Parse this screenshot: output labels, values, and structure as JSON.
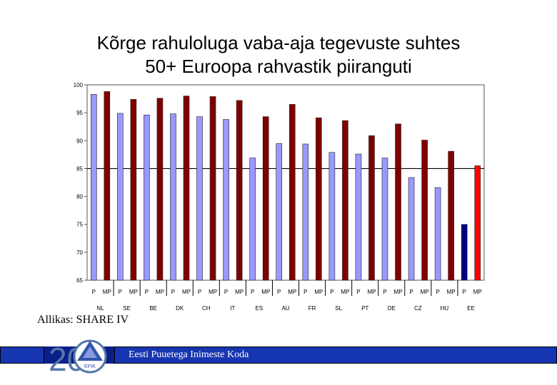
{
  "title": {
    "line1": "Kõrge rahuloluga vaba-aja tegevuste suhtes",
    "line2": "50+ Euroopa rahvastik piiranguti"
  },
  "source": "Allikas: SHARE IV",
  "footer": {
    "org": "Eesti Puuetega Inimeste Koda"
  },
  "logo": {
    "number": "20",
    "badge": "EPIK",
    "icon": "epik-logo-icon"
  },
  "colors": {
    "p": "#9999ff",
    "mp": "#800000",
    "ee_p": "#000080",
    "ee_mp": "#ff0000",
    "bar_outline": "#222222",
    "plot_bg": "#ffffff",
    "footer_bg": "#0b1f8a"
  },
  "chart_data": {
    "type": "bar",
    "title": "",
    "xlabel": "",
    "ylabel": "",
    "ylim": [
      65,
      100
    ],
    "yticks": [
      65,
      70,
      75,
      80,
      85,
      90,
      95,
      100
    ],
    "reference_line": 85,
    "grid": false,
    "categories": [
      "NL",
      "SE",
      "BE",
      "DK",
      "CH",
      "IT",
      "ES",
      "AU",
      "FR",
      "SL",
      "PT",
      "DE",
      "CZ",
      "HU",
      "EE"
    ],
    "subcategories": [
      "P",
      "MP"
    ],
    "series": [
      {
        "values": [
          98.3,
          94.9,
          94.6,
          94.8,
          94.3,
          93.8,
          86.9,
          89.5,
          89.4,
          87.9,
          87.6,
          86.9,
          83.4,
          81.6,
          75.0
        ]
      },
      {
        "values": [
          98.8,
          97.4,
          97.6,
          98.0,
          97.9,
          97.2,
          94.3,
          96.5,
          94.1,
          93.6,
          90.9,
          93.0,
          90.1,
          88.1,
          85.5
        ]
      }
    ]
  }
}
